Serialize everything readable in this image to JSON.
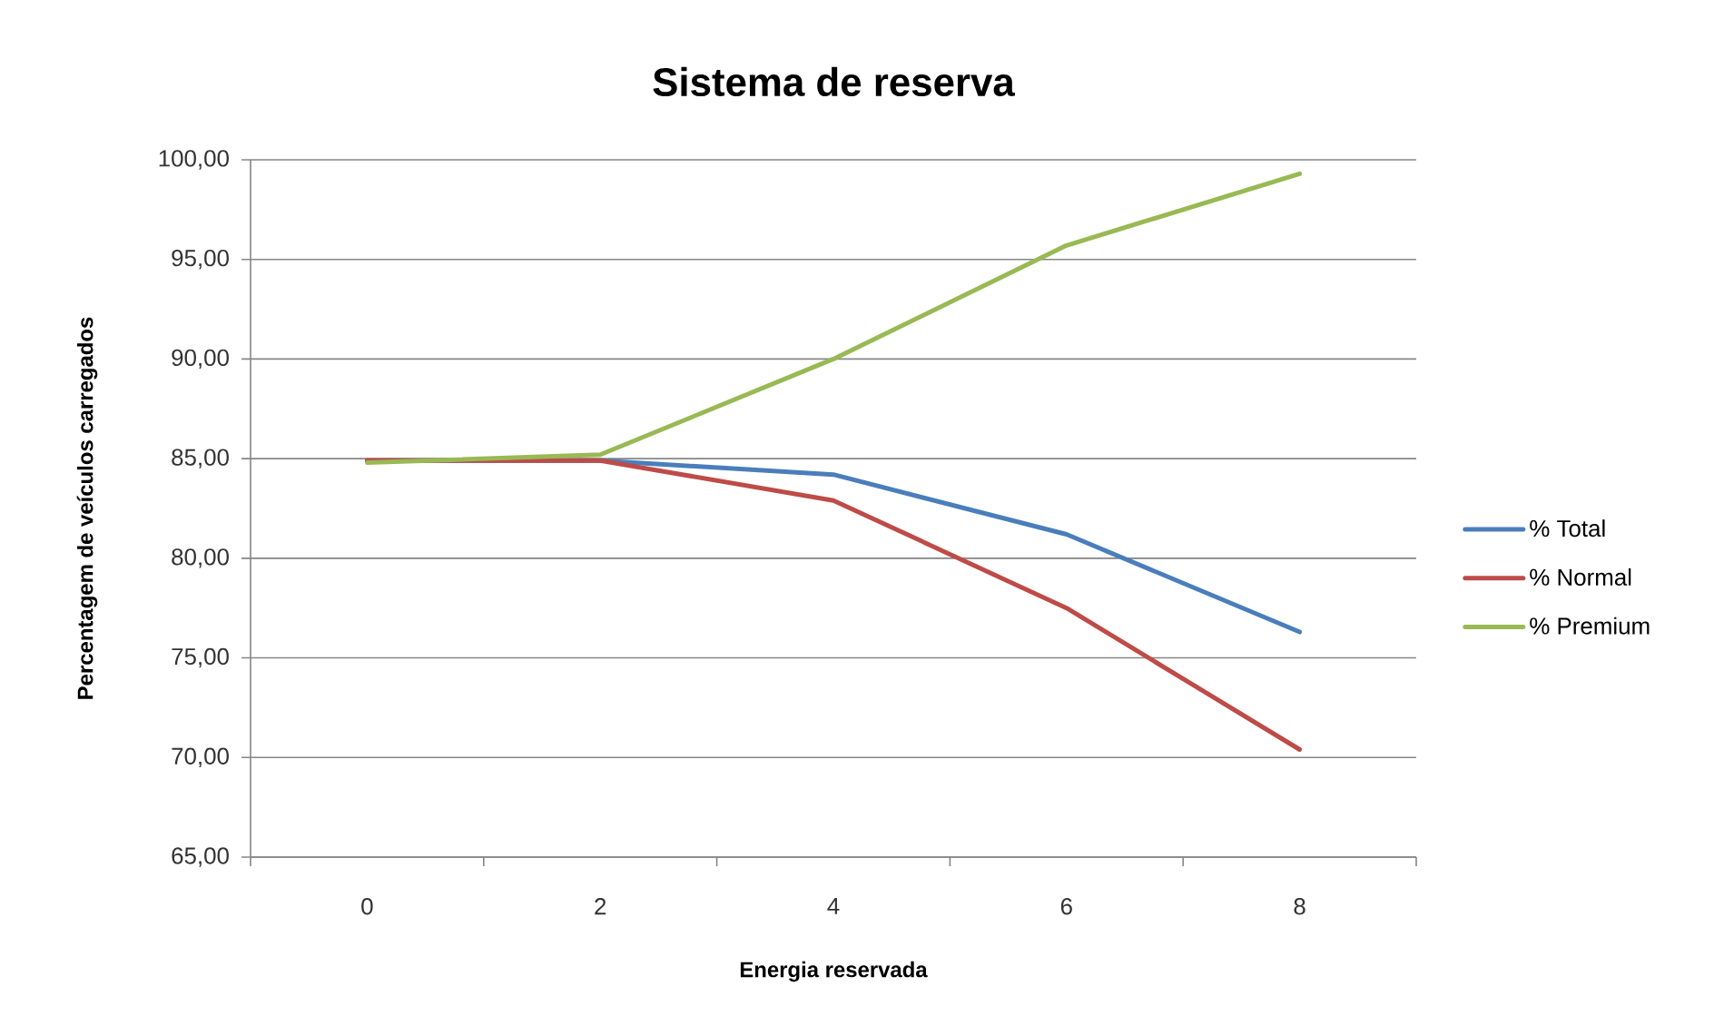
{
  "chart_data": {
    "type": "line",
    "title": "Sistema de reserva",
    "xlabel": "Energia reservada",
    "ylabel": "Percentagem de veículos carregados",
    "categories": [
      "0",
      "2",
      "4",
      "6",
      "8"
    ],
    "series": [
      {
        "name": "% Total",
        "color": "#4a7ebb",
        "values": [
          84.9,
          84.9,
          84.2,
          81.2,
          76.3
        ]
      },
      {
        "name": "% Normal",
        "color": "#be4b48",
        "values": [
          84.9,
          84.9,
          82.9,
          77.5,
          70.4
        ]
      },
      {
        "name": "% Premium",
        "color": "#98b954",
        "values": [
          84.8,
          85.2,
          90.0,
          95.7,
          99.3
        ]
      }
    ],
    "ylim": [
      65,
      100
    ],
    "yticks": [
      {
        "value": 65,
        "label": "65,00"
      },
      {
        "value": 70,
        "label": "70,00"
      },
      {
        "value": 75,
        "label": "75,00"
      },
      {
        "value": 80,
        "label": "80,00"
      },
      {
        "value": 85,
        "label": "85,00"
      },
      {
        "value": 90,
        "label": "90,00"
      },
      {
        "value": 95,
        "label": "95,00"
      },
      {
        "value": 100,
        "label": "100,00"
      }
    ],
    "grid": "y",
    "legend": "right"
  }
}
